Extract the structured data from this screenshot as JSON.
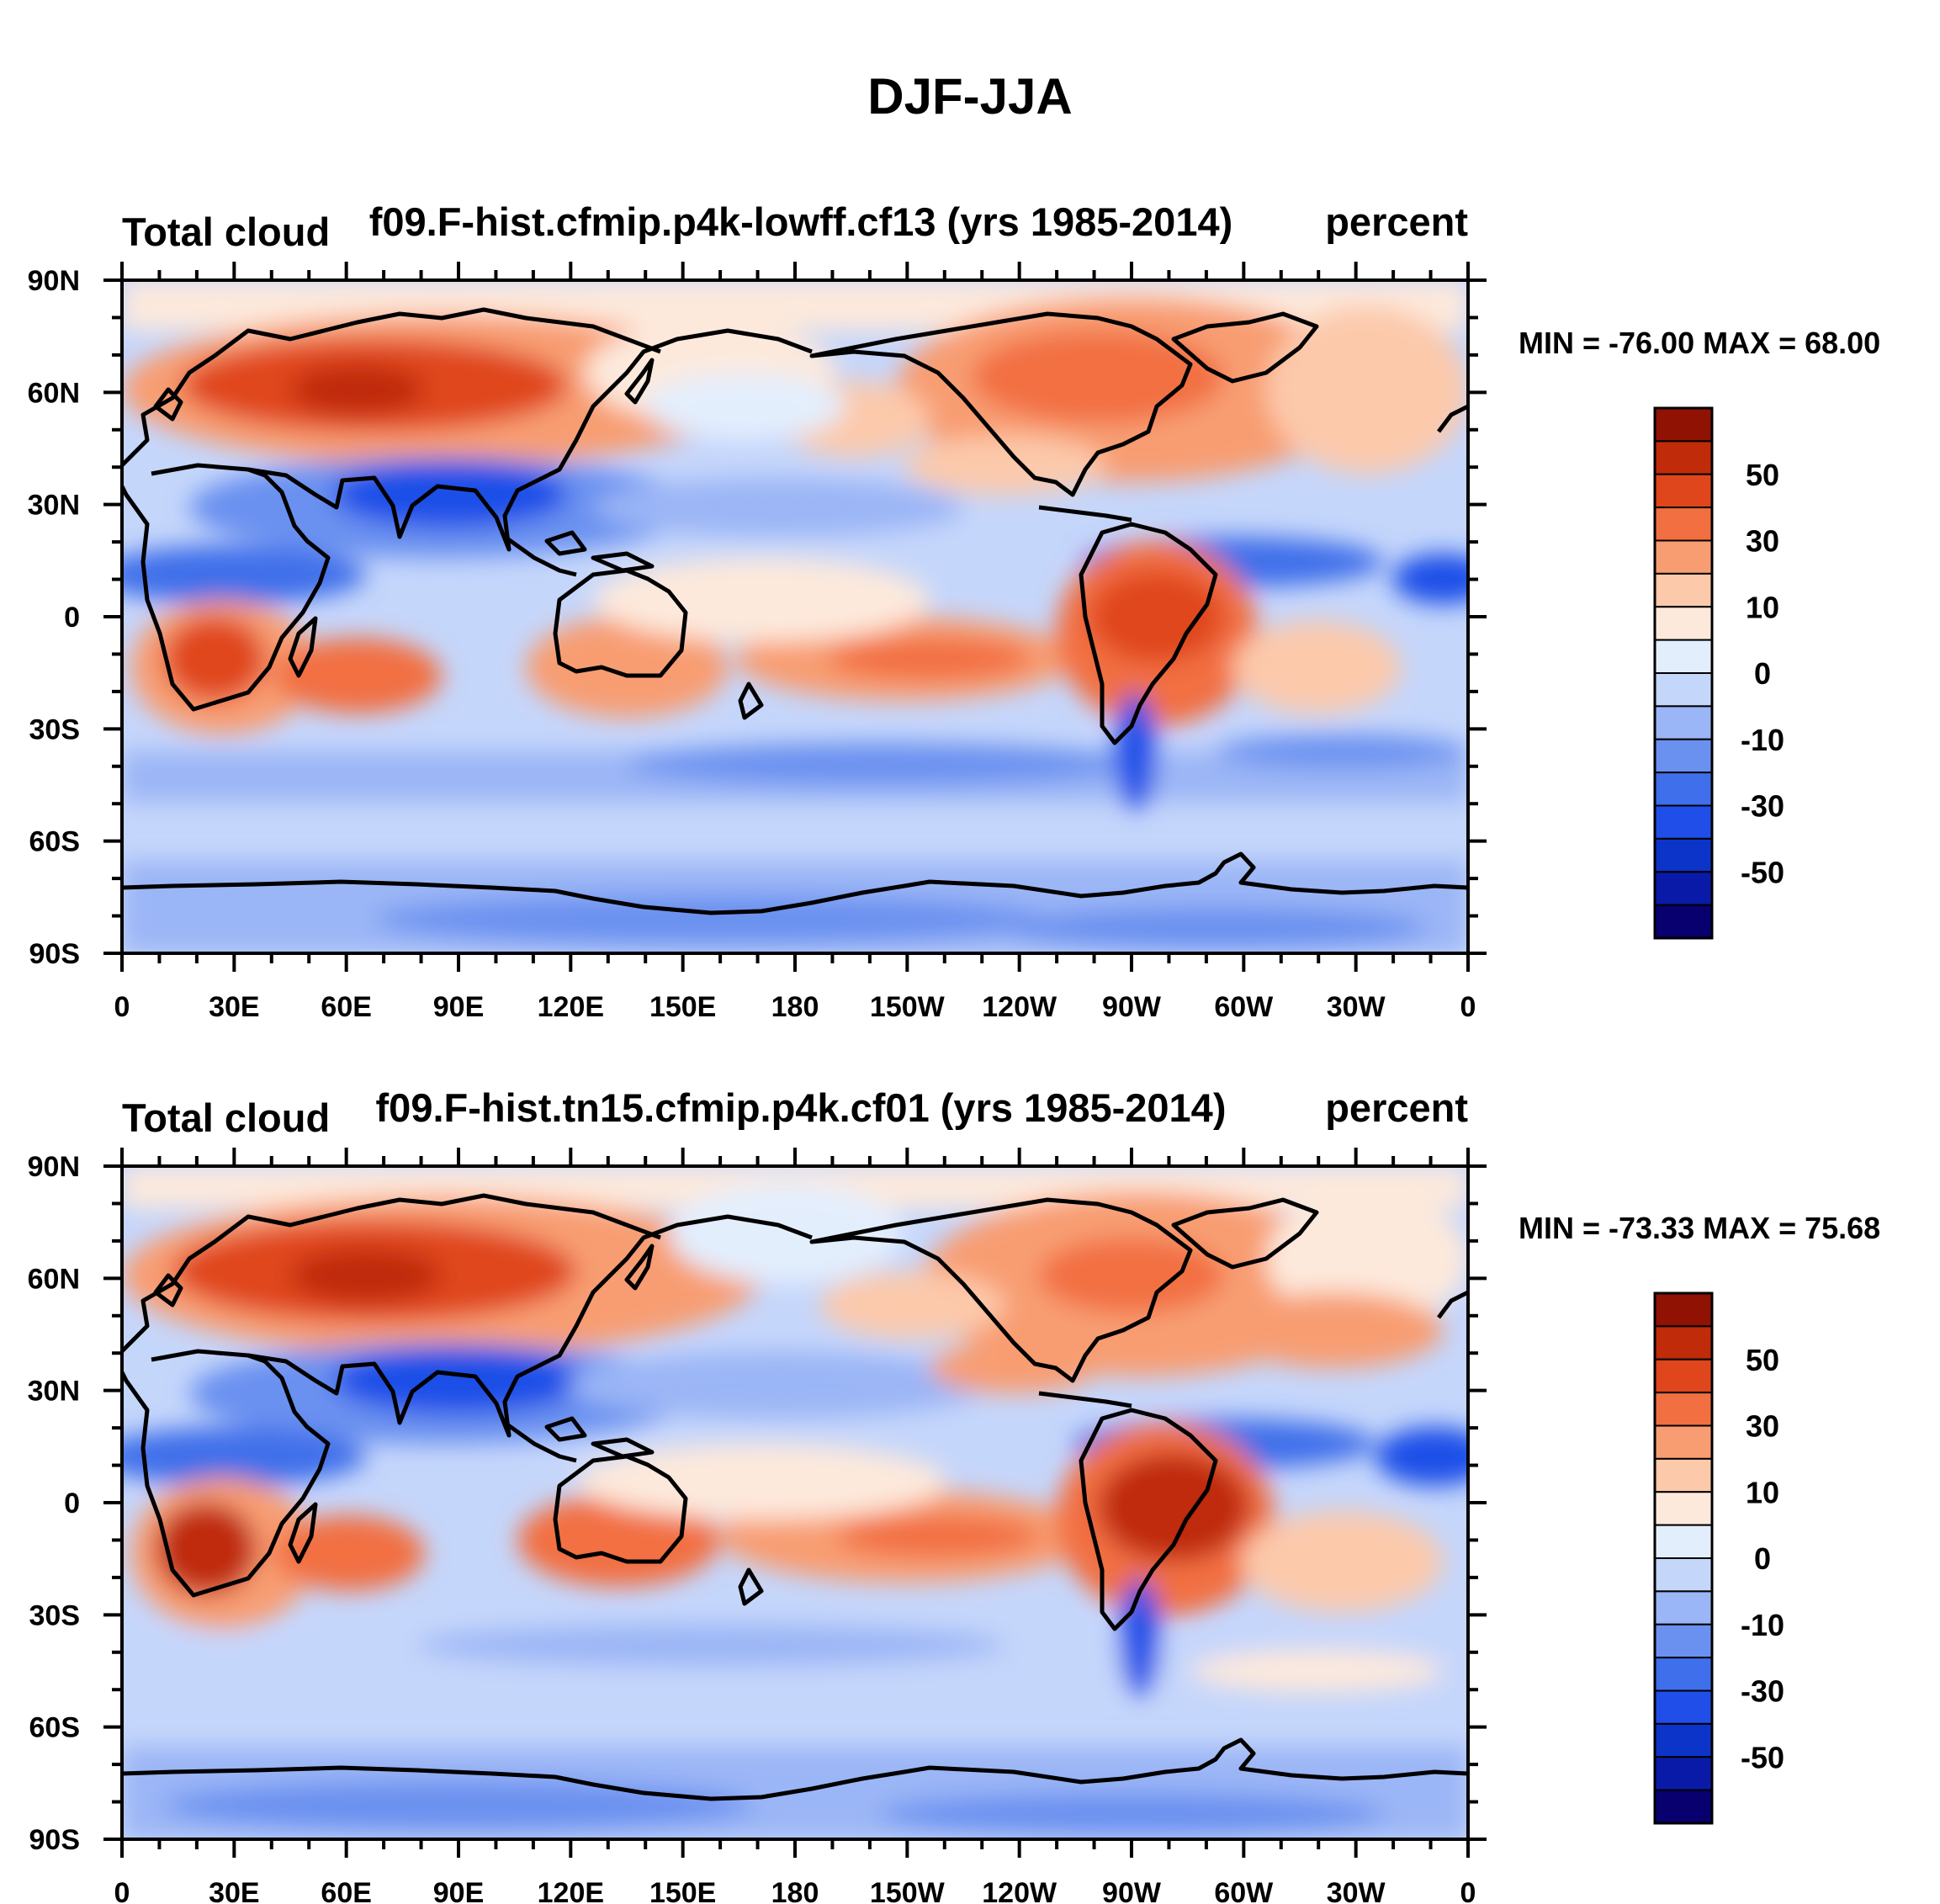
{
  "figure_title": "DJF-JJA",
  "palette": [
    "#08006e",
    "#0a1aa8",
    "#0d34c9",
    "#1f4fe8",
    "#3f6fea",
    "#6b91f0",
    "#9bb6f6",
    "#c5d6fb",
    "#e3eefd",
    "#fde9dc",
    "#fcc9ab",
    "#f89d72",
    "#f26f42",
    "#e0461c",
    "#c02b0a",
    "#8f1203"
  ],
  "colorbar_ticks": [
    "50",
    "30",
    "10",
    "0",
    "-10",
    "-30",
    "-50"
  ],
  "lon_labels": [
    "0",
    "30E",
    "60E",
    "90E",
    "120E",
    "150E",
    "180",
    "150W",
    "120W",
    "90W",
    "60W",
    "30W",
    "0"
  ],
  "lat_labels": [
    "90N",
    "60N",
    "30N",
    "0",
    "30S",
    "60S",
    "90S"
  ],
  "panels": [
    {
      "left_string": "Total cloud",
      "center_string": "f09.F-hist.cfmip.p4k-lowff.cf13 (yrs 1985-2014)",
      "right_string": "percent",
      "minmax": "MIN = -76.00 MAX =  68.00",
      "min": -76.0,
      "max": 68.0
    },
    {
      "left_string": "Total cloud",
      "center_string": "f09.F-hist.tn15.cfmip.p4k.cf01 (yrs 1985-2014)",
      "right_string": "percent",
      "minmax": "MIN = -73.33 MAX =  75.68",
      "min": -73.33,
      "max": 75.68
    }
  ]
}
